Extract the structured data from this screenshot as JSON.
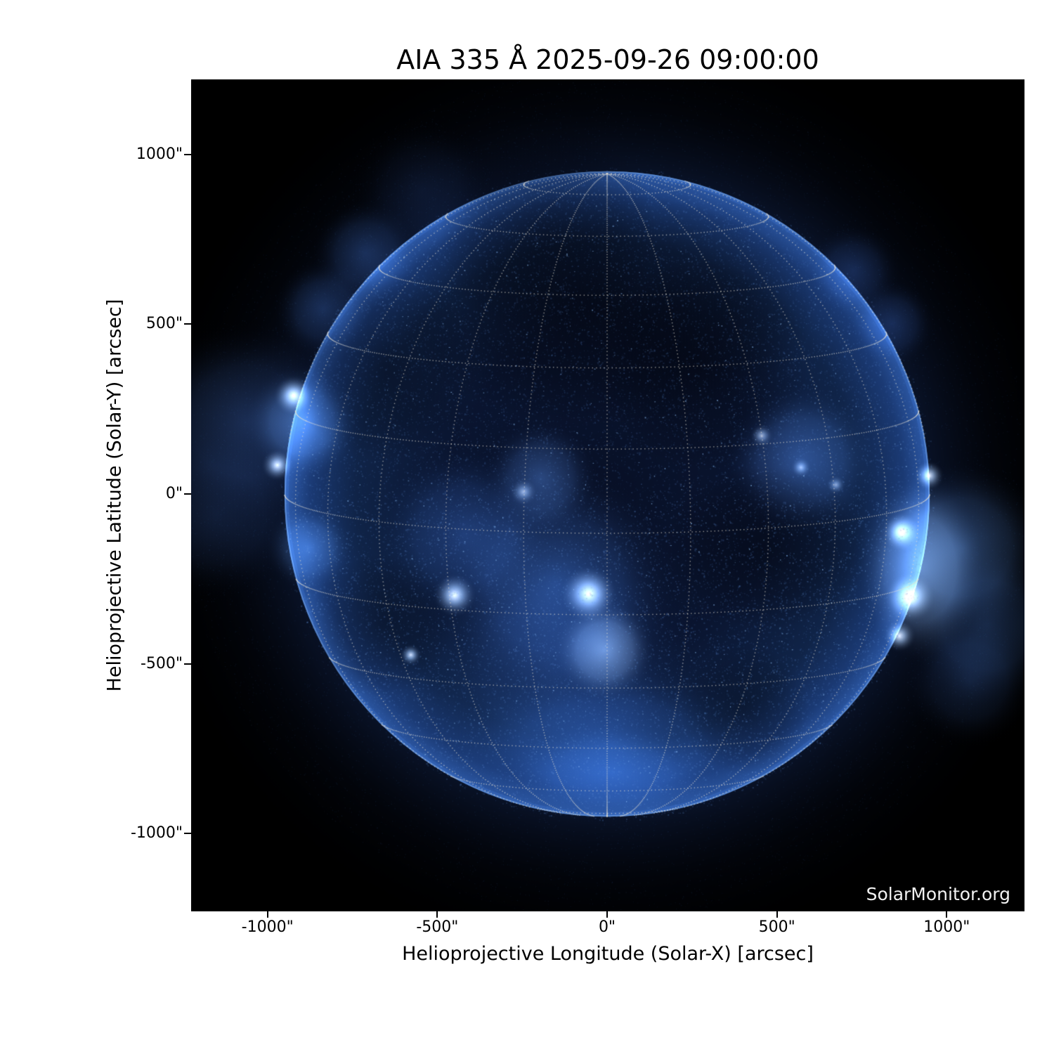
{
  "title": {
    "text": "AIA 335 Å 2025-09-26 09:00:00"
  },
  "watermark": {
    "text": "SolarMonitor.org"
  },
  "axes": {
    "xlabel": "Helioprojective Longitude (Solar-X) [arcsec]",
    "ylabel": "Helioprojective Latitude (Solar-Y) [arcsec]",
    "xticks": [
      {
        "value": -1000,
        "label": "-1000\""
      },
      {
        "value": -500,
        "label": "-500\""
      },
      {
        "value": 0,
        "label": "0\""
      },
      {
        "value": 500,
        "label": "500\""
      },
      {
        "value": 1000,
        "label": "1000\""
      }
    ],
    "yticks": [
      {
        "value": 1000,
        "label": "1000\""
      },
      {
        "value": 500,
        "label": "500\""
      },
      {
        "value": 0,
        "label": "0\""
      },
      {
        "value": -500,
        "label": "-500\""
      },
      {
        "value": -1000,
        "label": "-1000\""
      }
    ]
  },
  "colors": {
    "page_background": "#ffffff",
    "plot_background": "#000000",
    "text": "#000000",
    "watermark": "#f2f2f2",
    "grid_dots": "#e8e2d4",
    "colormap_min": "#000000",
    "colormap_mid": "#3c6cc0",
    "colormap_max": "#ffffff"
  },
  "chart_data": {
    "type": "heatmap",
    "description": "SDO/AIA 335 Angstrom full-disk solar EUV image (blue colormap) with heliographic graticule overlay",
    "instrument": "AIA",
    "wavelength": "335 Å",
    "datetime": "2025-09-26 09:00:00",
    "xlabel": "Helioprojective Longitude (Solar-X) [arcsec]",
    "ylabel": "Helioprojective Latitude (Solar-Y) [arcsec]",
    "xlim": [
      -1227,
      1230
    ],
    "ylim": [
      -1224,
      1224
    ],
    "tick_interval_arcsec": 500,
    "solar_radius_arcsec": 950,
    "b0_deg": 7,
    "grid_spacing_deg": 15,
    "grid_style": "dotted",
    "features": [
      {
        "kind": "glow",
        "x": -1064,
        "y": 213,
        "r": 300,
        "a": 0.32,
        "c": [
          62,
          102,
          178
        ]
      },
      {
        "kind": "glow",
        "x": -1150,
        "y": -60,
        "r": 260,
        "a": 0.22,
        "c": [
          55,
          92,
          165
        ]
      },
      {
        "kind": "glow",
        "x": -1230,
        "y": 100,
        "r": 430,
        "a": 0.13,
        "c": [
          45,
          80,
          150
        ]
      },
      {
        "kind": "glow",
        "x": -898,
        "y": 213,
        "r": 170,
        "a": 0.5,
        "c": [
          95,
          145,
          215
        ]
      },
      {
        "kind": "glow",
        "x": -878,
        "y": -159,
        "r": 130,
        "a": 0.42,
        "c": [
          85,
          135,
          205
        ]
      },
      {
        "kind": "glow",
        "x": -712,
        "y": 710,
        "r": 160,
        "a": 0.34,
        "c": [
          60,
          105,
          185
        ]
      },
      {
        "kind": "glow",
        "x": -836,
        "y": 544,
        "r": 150,
        "a": 0.36,
        "c": [
          60,
          105,
          185
        ]
      },
      {
        "kind": "glow",
        "x": -546,
        "y": 896,
        "r": 210,
        "a": 0.16,
        "c": [
          50,
          85,
          160
        ]
      },
      {
        "kind": "glow",
        "x": 726,
        "y": 658,
        "r": 140,
        "a": 0.3,
        "c": [
          55,
          95,
          175
        ]
      },
      {
        "kind": "glow",
        "x": 840,
        "y": 503,
        "r": 130,
        "a": 0.32,
        "c": [
          55,
          95,
          175
        ]
      },
      {
        "kind": "glow",
        "x": 12,
        "y": -739,
        "r": 480,
        "ry": 0.5,
        "a": 0.38,
        "c": [
          48,
          92,
          172
        ]
      },
      {
        "kind": "glow",
        "x": -132,
        "y": -511,
        "r": 420,
        "a": 0.3,
        "c": [
          52,
          98,
          178
        ]
      },
      {
        "kind": "glow",
        "x": -153,
        "y": -263,
        "r": 360,
        "a": 0.42,
        "c": [
          62,
          112,
          192
        ]
      },
      {
        "kind": "glow",
        "x": -422,
        "y": -118,
        "r": 260,
        "a": 0.38,
        "c": [
          58,
          106,
          186
        ]
      },
      {
        "kind": "glow",
        "x": -195,
        "y": 48,
        "r": 170,
        "a": 0.4,
        "c": [
          82,
          130,
          205
        ]
      },
      {
        "kind": "glow",
        "x": 571,
        "y": 99,
        "r": 230,
        "a": 0.45,
        "c": [
          78,
          126,
          205
        ]
      },
      {
        "kind": "glow",
        "x": 12,
        "y": -821,
        "r": 320,
        "ry": 0.45,
        "a": 0.3,
        "c": [
          58,
          108,
          188
        ]
      },
      {
        "kind": "glow",
        "x": 1047,
        "y": -159,
        "r": 260,
        "a": 0.42,
        "c": [
          88,
          138,
          212
        ]
      },
      {
        "kind": "glow",
        "x": 1119,
        "y": -387,
        "r": 240,
        "a": 0.33,
        "c": [
          66,
          112,
          188
        ]
      },
      {
        "kind": "glow",
        "x": 1068,
        "y": -552,
        "r": 200,
        "a": 0.28,
        "c": [
          56,
          96,
          170
        ]
      },
      {
        "kind": "glow",
        "x": 923,
        "y": -221,
        "r": 190,
        "ry": 1.5,
        "a": 0.55,
        "c": [
          145,
          185,
          235
        ]
      },
      {
        "kind": "glow",
        "x": -8,
        "y": -460,
        "r": 150,
        "a": 0.5,
        "c": [
          170,
          205,
          245
        ]
      },
      {
        "kind": "dark",
        "x": -8,
        "y": 544,
        "r": 620,
        "ry": 0.55,
        "a": 0.68
      },
      {
        "kind": "dark",
        "x": -174,
        "y": 772,
        "r": 320,
        "a": 0.45
      },
      {
        "kind": "dark",
        "x": 281,
        "y": 379,
        "r": 310,
        "a": 0.45
      },
      {
        "kind": "dark",
        "x": 468,
        "y": -159,
        "r": 300,
        "ry": 0.8,
        "a": 0.5
      },
      {
        "kind": "dark",
        "x": -660,
        "y": 379,
        "r": 280,
        "a": 0.45
      },
      {
        "kind": "dark",
        "x": -670,
        "y": -387,
        "r": 210,
        "a": 0.4
      },
      {
        "kind": "dark",
        "x": 406,
        "y": -635,
        "r": 190,
        "a": 0.35
      },
      {
        "kind": "core",
        "x": -923,
        "y": 290,
        "r": 60,
        "a": 0.95
      },
      {
        "kind": "core",
        "x": -971,
        "y": 85,
        "r": 48,
        "a": 0.9
      },
      {
        "kind": "core",
        "x": -449,
        "y": -298,
        "r": 65,
        "a": 0.92
      },
      {
        "kind": "core",
        "x": -54,
        "y": -294,
        "r": 85,
        "a": 0.96
      },
      {
        "kind": "core",
        "x": -578,
        "y": -474,
        "r": 32,
        "a": 0.8
      },
      {
        "kind": "core",
        "x": 948,
        "y": 54,
        "r": 45,
        "a": 0.9
      },
      {
        "kind": "core",
        "x": 867,
        "y": -112,
        "r": 58,
        "a": 0.95
      },
      {
        "kind": "core",
        "x": 892,
        "y": -304,
        "r": 75,
        "a": 0.97
      },
      {
        "kind": "core",
        "x": 861,
        "y": -418,
        "r": 48,
        "a": 0.85
      },
      {
        "kind": "core",
        "x": 455,
        "y": 172,
        "r": 34,
        "a": 0.55
      },
      {
        "kind": "core",
        "x": 571,
        "y": 78,
        "r": 30,
        "a": 0.5
      },
      {
        "kind": "core",
        "x": 674,
        "y": 27,
        "r": 28,
        "a": 0.45
      },
      {
        "kind": "core",
        "x": -246,
        "y": 6,
        "r": 40,
        "a": 0.5
      }
    ]
  }
}
